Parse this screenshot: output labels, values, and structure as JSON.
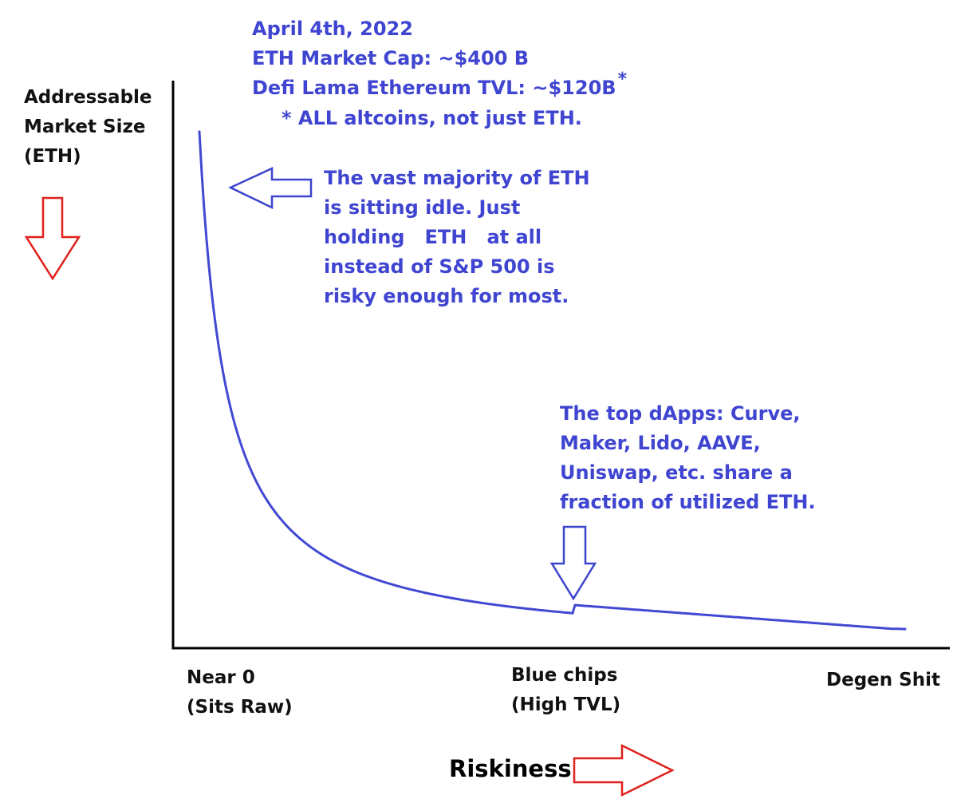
{
  "axis": {
    "y_label": [
      "Addressable",
      "Market Size",
      "(ETH)"
    ],
    "x_title": "Riskiness",
    "x_ticks": [
      {
        "line1": "Near 0",
        "line2": "(Sits Raw)"
      },
      {
        "line1": "Blue chips",
        "line2": "(High TVL)"
      },
      {
        "line1": "Degen Shit",
        "line2": ""
      }
    ]
  },
  "header_note": {
    "date": "April 4th, 2022",
    "market_cap": "ETH Market Cap: ~$400 B",
    "tvl": "Defi Lama Ethereum TVL: ~$120B",
    "tvl_mark": "*",
    "footnote": "* ALL altcoins, not just ETH."
  },
  "callout_idle": [
    "The vast majority of ETH",
    "is sitting idle. Just",
    "holding   ETH   at all",
    "instead of S&P 500 is",
    "risky enough for most."
  ],
  "callout_dapps": [
    "The top dApps: Curve,",
    "Maker, Lido, AAVE,",
    "Uniswap, etc. share a",
    "fraction of utilized ETH."
  ],
  "colors": {
    "text_blue": "#3f45d0",
    "curve": "#4149d3",
    "arrow_blue": "#3c44cc",
    "arrow_red": "#e0201c",
    "axis": "#000000"
  },
  "icons": [
    "red-down-arrow-icon",
    "red-right-arrow-icon",
    "blue-left-arrow-icon",
    "blue-down-arrow-icon"
  ]
}
